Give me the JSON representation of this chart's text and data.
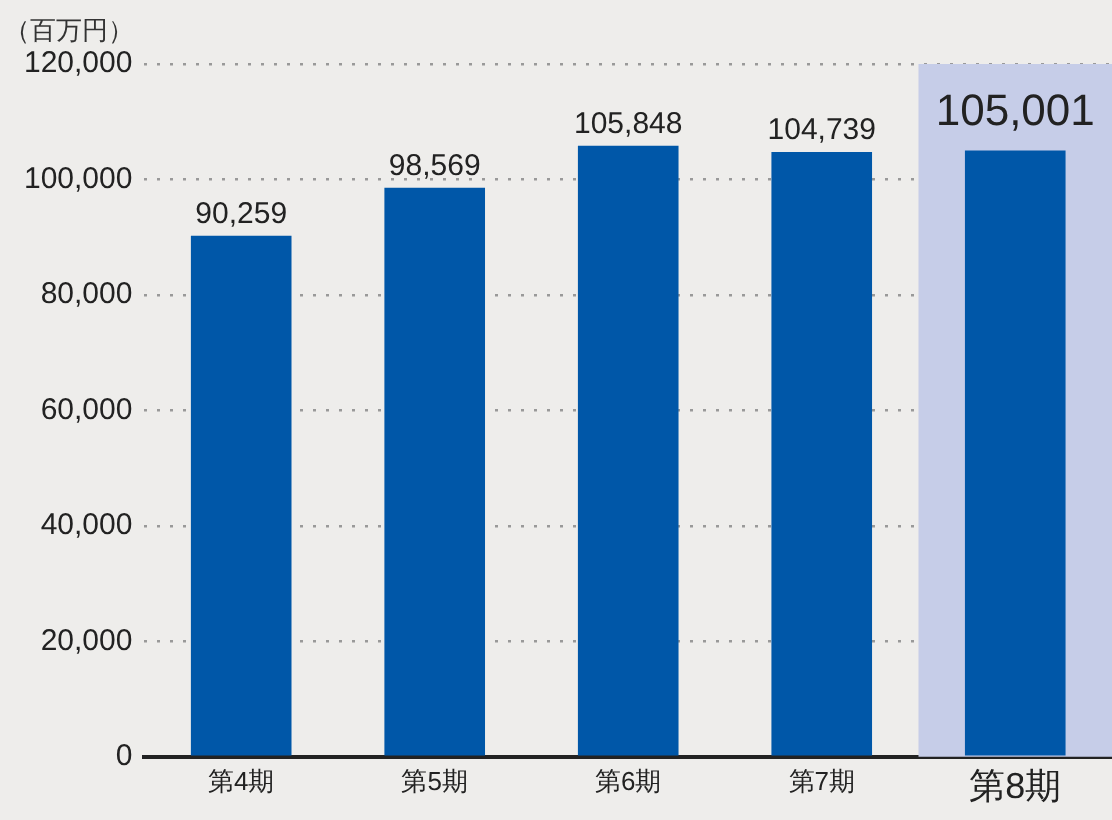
{
  "chart_data": {
    "type": "bar",
    "ylabel": "（百万円）",
    "categories": [
      "第4期",
      "第5期",
      "第6期",
      "第7期",
      "第8期"
    ],
    "values": [
      90259,
      98569,
      105848,
      104739,
      105001
    ],
    "color": "#0057a8",
    "ylim": [
      0,
      120000
    ],
    "yticks": [
      {
        "value": 0,
        "label": "0"
      },
      {
        "value": 20000,
        "label": "20,000"
      },
      {
        "value": 40000,
        "label": "40,000"
      },
      {
        "value": 60000,
        "label": "60,000"
      },
      {
        "value": 80000,
        "label": "80,000"
      },
      {
        "value": 100000,
        "label": "100,000"
      },
      {
        "value": 120000,
        "label": "120,000"
      }
    ],
    "value_labels": [
      "90,259",
      "98,569",
      "105,848",
      "104,739",
      "105,001"
    ],
    "grid": "y",
    "legend": false,
    "bands": [
      {
        "axis": "x",
        "from": "第8期",
        "to": "第8期",
        "color": "#c6cde8"
      }
    ]
  }
}
